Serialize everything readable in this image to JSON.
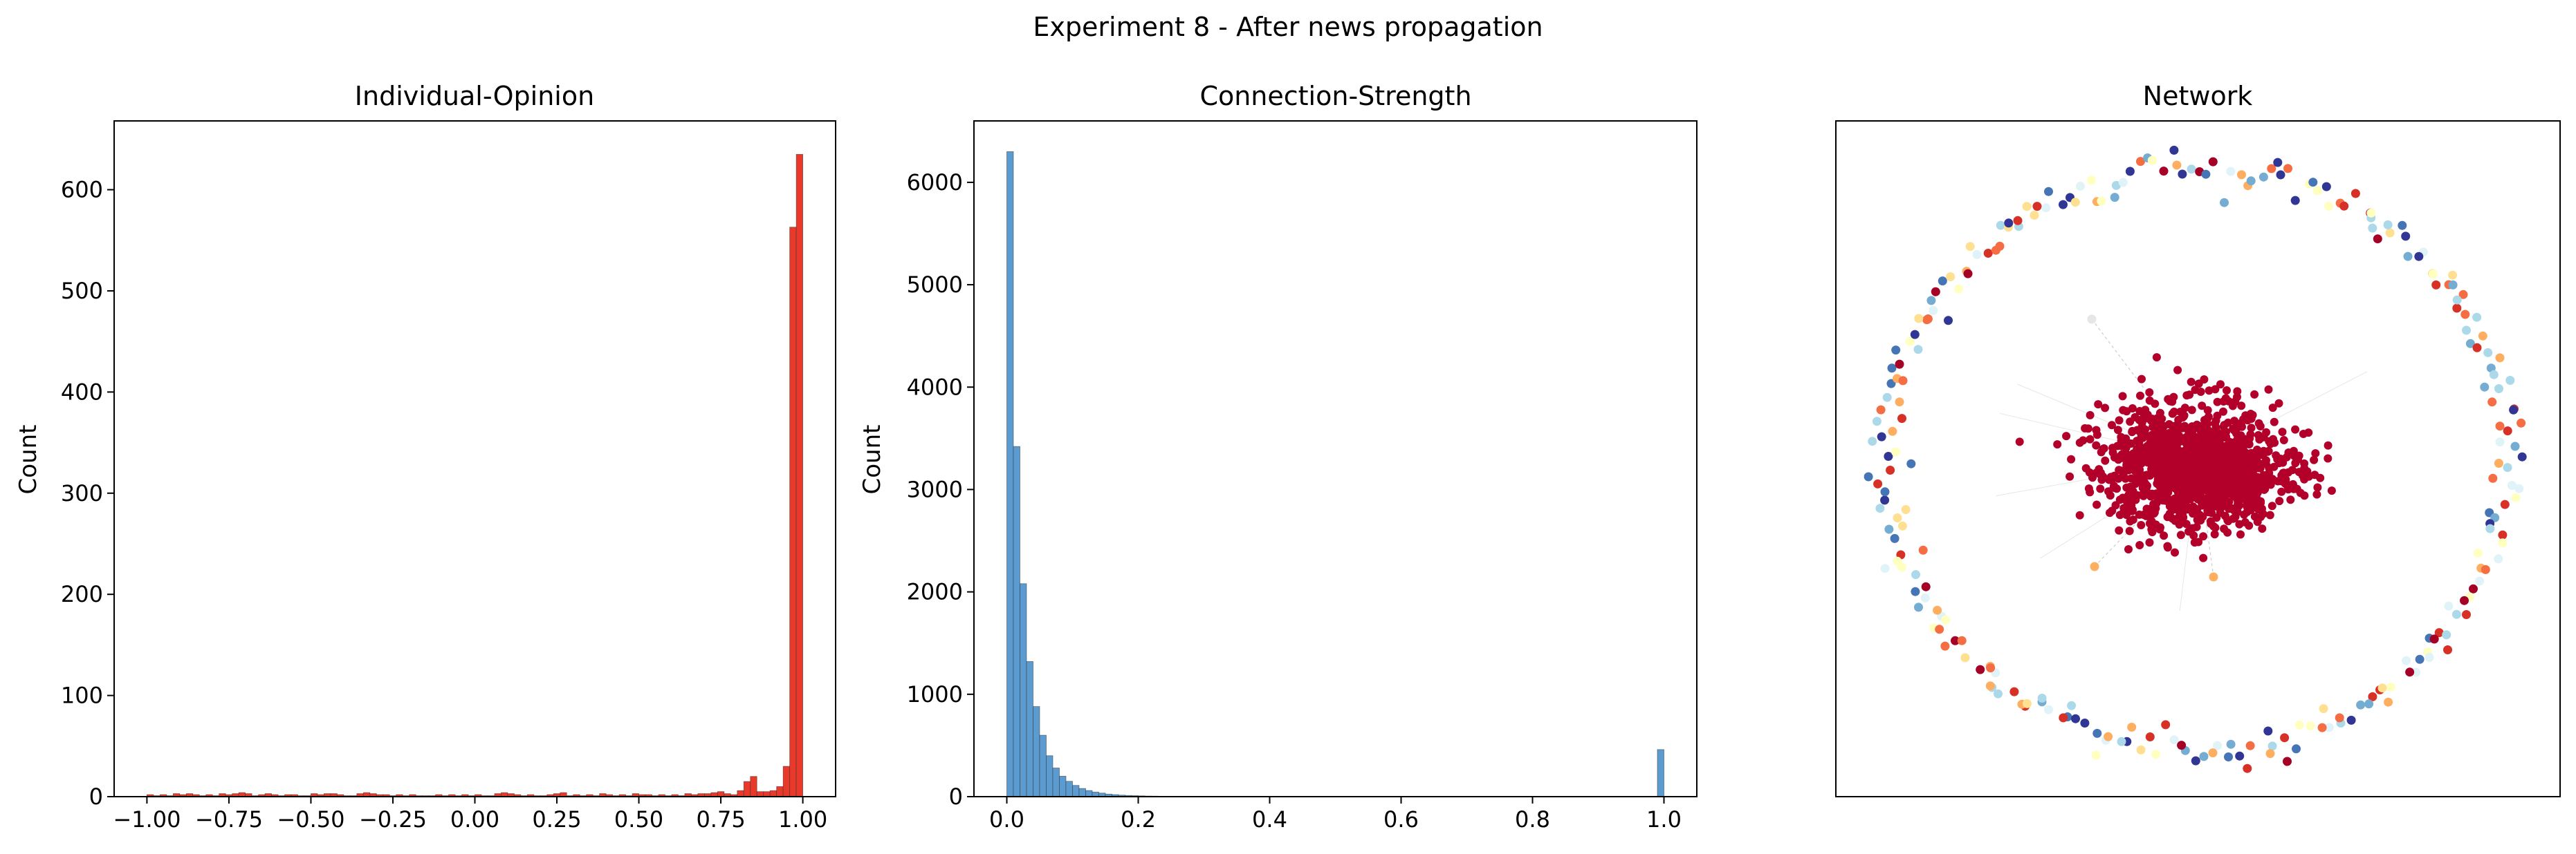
{
  "figure": {
    "suptitle": "Experiment 8 - After news propagation"
  },
  "chart_data": [
    {
      "type": "bar",
      "title": "Individual-Opinion",
      "xlabel": "",
      "ylabel": "Count",
      "xlim": [
        -1.1,
        1.1
      ],
      "ylim": [
        0,
        668
      ],
      "xticks": [
        -1.0,
        -0.75,
        -0.5,
        -0.25,
        0.0,
        0.25,
        0.5,
        0.75,
        1.0
      ],
      "xtick_labels": [
        "−1.00",
        "−0.75",
        "−0.50",
        "−0.25",
        "0.00",
        "0.25",
        "0.50",
        "0.75",
        "1.00"
      ],
      "yticks": [
        0,
        100,
        200,
        300,
        400,
        500,
        600
      ],
      "ytick_labels": [
        "0",
        "100",
        "200",
        "300",
        "400",
        "500",
        "600"
      ],
      "bin_start": -1.0,
      "bin_width": 0.02,
      "color": "#e8392b",
      "counts": [
        2,
        1,
        2,
        1,
        3,
        2,
        3,
        2,
        1,
        2,
        1,
        3,
        2,
        3,
        4,
        3,
        1,
        2,
        3,
        2,
        1,
        2,
        2,
        1,
        1,
        3,
        2,
        3,
        3,
        2,
        1,
        1,
        3,
        4,
        3,
        2,
        2,
        1,
        2,
        1,
        2,
        1,
        1,
        1,
        2,
        1,
        2,
        1,
        2,
        1,
        2,
        1,
        1,
        3,
        4,
        3,
        2,
        1,
        2,
        1,
        1,
        2,
        3,
        4,
        1,
        2,
        1,
        2,
        1,
        3,
        2,
        1,
        2,
        1,
        3,
        2,
        2,
        1,
        2,
        1,
        2,
        1,
        3,
        2,
        3,
        3,
        4,
        5,
        3,
        2,
        6,
        15,
        20,
        5,
        5,
        6,
        10,
        30,
        563,
        635
      ]
    },
    {
      "type": "bar",
      "title": "Connection-Strength",
      "xlabel": "",
      "ylabel": "Count",
      "xlim": [
        -0.05,
        1.05
      ],
      "ylim": [
        0,
        6600
      ],
      "xticks": [
        0.0,
        0.2,
        0.4,
        0.6,
        0.8,
        1.0
      ],
      "xtick_labels": [
        "0.0",
        "0.2",
        "0.4",
        "0.6",
        "0.8",
        "1.0"
      ],
      "yticks": [
        0,
        1000,
        2000,
        3000,
        4000,
        5000,
        6000
      ],
      "ytick_labels": [
        "0",
        "1000",
        "2000",
        "3000",
        "4000",
        "5000",
        "6000"
      ],
      "bin_start": 0.0,
      "bin_width": 0.01,
      "color": "#5b9bd0",
      "counts": [
        6300,
        3420,
        2080,
        1320,
        880,
        600,
        400,
        280,
        200,
        150,
        110,
        80,
        60,
        45,
        35,
        25,
        20,
        15,
        12,
        10,
        8,
        6,
        5,
        4,
        3,
        3,
        2,
        2,
        1,
        1,
        0,
        0,
        0,
        0,
        0,
        0,
        0,
        0,
        0,
        0,
        0,
        0,
        0,
        0,
        0,
        0,
        0,
        0,
        0,
        0,
        0,
        0,
        0,
        0,
        0,
        0,
        0,
        0,
        0,
        0,
        0,
        0,
        0,
        0,
        0,
        0,
        0,
        0,
        0,
        0,
        0,
        0,
        0,
        0,
        0,
        0,
        0,
        0,
        0,
        0,
        0,
        0,
        0,
        0,
        0,
        0,
        0,
        0,
        0,
        0,
        0,
        0,
        0,
        0,
        0,
        0,
        0,
        0,
        0,
        460
      ]
    },
    {
      "type": "scatter",
      "title": "Network",
      "xlabel": "",
      "ylabel": "",
      "grid": false,
      "cluster_color": "#b2002a",
      "ring_palette": [
        "#313695",
        "#4575b4",
        "#74add1",
        "#abd9e9",
        "#e0f3f8",
        "#ffffbf",
        "#fee090",
        "#fdae61",
        "#f46d43",
        "#d73027",
        "#a50026"
      ]
    }
  ]
}
